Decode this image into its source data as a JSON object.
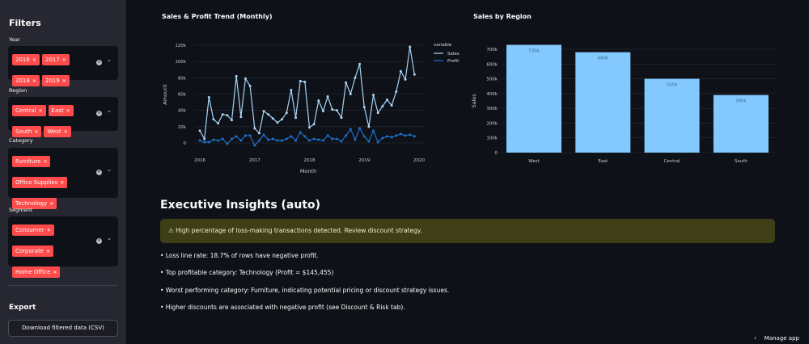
{
  "sidebar": {
    "title": "Filters",
    "filters": [
      {
        "label": "Year",
        "values": [
          "2016",
          "2017",
          "2018",
          "2019"
        ]
      },
      {
        "label": "Region",
        "values": [
          "Central",
          "East",
          "South",
          "West"
        ]
      },
      {
        "label": "Category",
        "values": [
          "Furniture",
          "Office Supplies",
          "Technology"
        ]
      },
      {
        "label": "Segment",
        "values": [
          "Consumer",
          "Corporate",
          "Home Office"
        ]
      }
    ],
    "export_title": "Export",
    "download_label": "Download filtered data (CSV)"
  },
  "chart_data": [
    {
      "type": "line",
      "title": "Sales & Profit Trend (Monthly)",
      "xlabel": "Month",
      "ylabel": "Amount",
      "xticks": [
        "2016",
        "2017",
        "2018",
        "2019",
        "2020"
      ],
      "yticks": [
        "0",
        "20k",
        "40k",
        "60k",
        "80k",
        "100k",
        "120k"
      ],
      "ylim": [
        -10000,
        130000
      ],
      "legend_title": "variable",
      "legend_position": "right",
      "grid": true,
      "x_start": "2016-01",
      "x_step": "month",
      "series": [
        {
          "name": "Sales",
          "color": "#a8d4f5",
          "values": [
            15000,
            5000,
            56000,
            29000,
            24000,
            35000,
            34000,
            28000,
            82000,
            32000,
            79000,
            70000,
            18000,
            12000,
            39000,
            35000,
            30000,
            25000,
            29000,
            37000,
            65000,
            31000,
            76000,
            75000,
            19000,
            23000,
            52000,
            39000,
            57000,
            41000,
            40000,
            31000,
            74000,
            60000,
            80000,
            97000,
            44000,
            20000,
            59000,
            37000,
            45000,
            53000,
            46000,
            63000,
            88000,
            78000,
            118000,
            84000
          ]
        },
        {
          "name": "Profit",
          "color": "#1f6fc9",
          "values": [
            3000,
            1000,
            1000,
            4000,
            3000,
            5000,
            -1000,
            5000,
            8000,
            3000,
            9000,
            9000,
            -3000,
            3000,
            10000,
            4000,
            5000,
            3000,
            3000,
            5000,
            8000,
            3000,
            13000,
            8000,
            3000,
            5000,
            4000,
            3000,
            9000,
            5000,
            5000,
            2000,
            9000,
            17000,
            4000,
            18000,
            8000,
            2000,
            15000,
            1000,
            6000,
            8000,
            7000,
            9000,
            11000,
            9000,
            10000,
            8000
          ]
        }
      ]
    },
    {
      "type": "bar",
      "title": "Sales by Region",
      "xlabel": "",
      "ylabel": "Sales",
      "categories": [
        "West",
        "East",
        "Central",
        "South"
      ],
      "values": [
        730000,
        680000,
        500000,
        390000
      ],
      "labels": [
        "730k",
        "680k",
        "500k",
        "390k"
      ],
      "color": "#83c9ff",
      "yticks": [
        "0",
        "100k",
        "200k",
        "300k",
        "400k",
        "500k",
        "600k",
        "700k"
      ],
      "ylim": [
        0,
        750000
      ],
      "grid": true
    }
  ],
  "insights": {
    "title": "Executive Insights (auto)",
    "warning": "⚠ High percentage of loss-making transactions detected. Review discount strategy.",
    "bullets": [
      "• Loss line rate: 18.7% of rows have negative profit.",
      "• Top profitable category: Technology (Profit = $145,455)",
      "• Worst performing category: Furniture, indicating potential pricing or discount strategy issues.",
      "• Higher discounts are associated with negative profit (see Discount & Risk tab)."
    ]
  },
  "footer": {
    "manage_app": "Manage app"
  }
}
